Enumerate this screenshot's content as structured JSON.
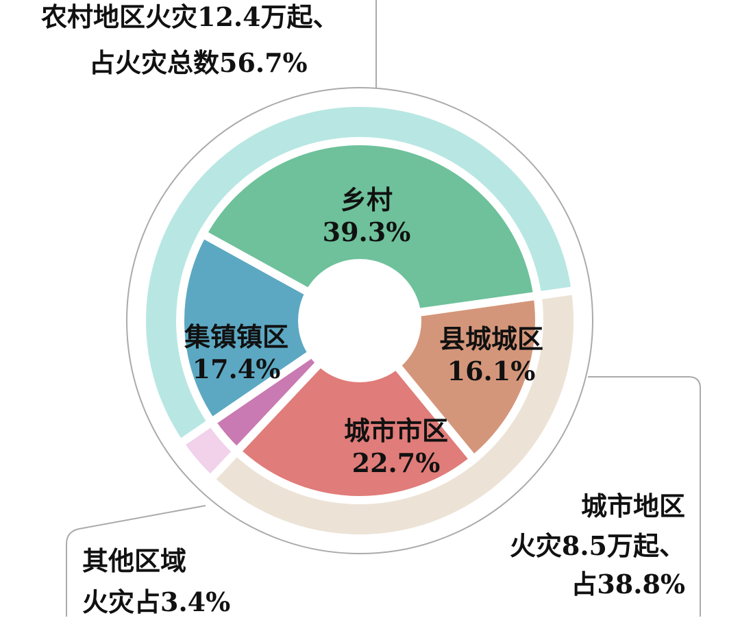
{
  "chart_data": {
    "type": "pie",
    "variant": "nested-donut",
    "inner_ring": [
      {
        "label": "县城城区",
        "value": 16.1,
        "value_text": "16.1%",
        "color": "#d4967a"
      },
      {
        "label": "城市市区",
        "value": 22.7,
        "value_text": "22.7%",
        "color": "#e07c79"
      },
      {
        "label": "",
        "value": 3.4,
        "color": "#c97ab2"
      },
      {
        "label": "集镇镇区",
        "value": 17.4,
        "value_text": "17.4%",
        "color": "#5ca8c3"
      },
      {
        "label": "乡村",
        "value": 39.3,
        "value_text": "39.3%",
        "color": "#6ec19b"
      }
    ],
    "outer_ring": [
      {
        "group": "urban",
        "value": 38.8,
        "color": "#ece3d6"
      },
      {
        "group": "other",
        "value": 3.4,
        "color": "#f1d2ea"
      },
      {
        "group": "rural",
        "value": 56.7,
        "color": "#b8e7e3"
      }
    ],
    "annotations": {
      "rural": [
        "农村地区火灾12.4万起、",
        "占火灾总数56.7%"
      ],
      "urban": [
        "城市地区",
        "火灾8.5万起、",
        "占38.8%"
      ],
      "other": [
        "其他区域",
        "火灾占3.4%"
      ]
    },
    "line_color": "#aaaaaa"
  }
}
